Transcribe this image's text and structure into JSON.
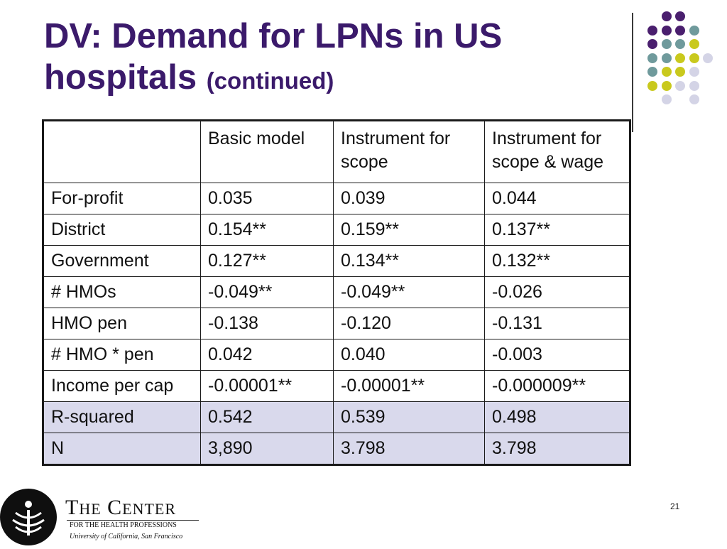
{
  "title": {
    "main": "DV: Demand for LPNs in US hospitals",
    "sub": "(continued)"
  },
  "table": {
    "header": [
      "",
      "Basic model",
      "Instrument for scope",
      "Instrument for scope & wage"
    ],
    "rows": [
      [
        "For-profit",
        "0.035",
        "0.039",
        "0.044"
      ],
      [
        "District",
        "0.154**",
        "0.159**",
        "0.137**"
      ],
      [
        "Government",
        "0.127**",
        "0.134**",
        "0.132**"
      ],
      [
        "# HMOs",
        "-0.049**",
        "-0.049**",
        "-0.026"
      ],
      [
        "HMO pen",
        "-0.138",
        "-0.120",
        "-0.131"
      ],
      [
        "# HMO * pen",
        "0.042",
        "0.040",
        "-0.003"
      ],
      [
        "Income per cap",
        "-0.00001**",
        "-0.00001**",
        "-0.000009**"
      ],
      [
        "R-squared",
        "0.542",
        "0.539",
        "0.498"
      ],
      [
        "N",
        "3,890",
        "3.798",
        "3.798"
      ]
    ]
  },
  "footer": {
    "logo_title_first_letter_1": "T",
    "logo_title_rest_1": "HE",
    "logo_title_first_letter_2": "C",
    "logo_title_rest_2": "ENTER",
    "logo_subtitle": "FOR THE HEALTH PROFESSIONS",
    "logo_university": "University of California, San Francisco",
    "page_number": "21"
  },
  "colors": {
    "title": "#3b1a6b",
    "dot_purple": "#4a1f6e",
    "dot_teal": "#6f9a9c",
    "dot_yellow": "#c9c91d",
    "dot_lavender": "#d4d4e6",
    "shaded_row": "#d9d9ec"
  }
}
